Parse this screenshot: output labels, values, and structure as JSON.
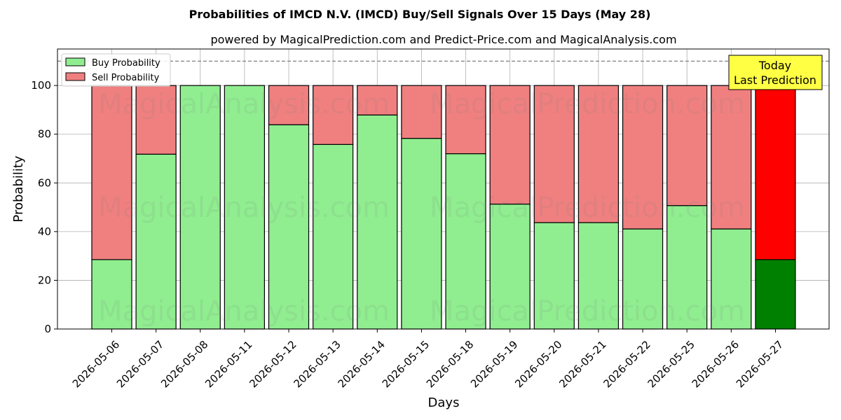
{
  "chart_data": {
    "type": "bar",
    "stacked": true,
    "title": "Probabilities of IMCD N.V. (IMCD) Buy/Sell Signals Over 15 Days (May 28)",
    "subtitle": "powered by MagicalPrediction.com and Predict-Price.com and MagicalAnalysis.com",
    "xlabel": "Days",
    "ylabel": "Probability",
    "ylim": [
      0,
      115
    ],
    "yticks": [
      0,
      20,
      40,
      60,
      80,
      100
    ],
    "reference_line": 110,
    "grid": true,
    "legend_position": "top-left",
    "categories": [
      "2026-05-06",
      "2026-05-07",
      "2026-05-08",
      "2026-05-11",
      "2026-05-12",
      "2026-05-13",
      "2026-05-14",
      "2026-05-15",
      "2026-05-18",
      "2026-05-19",
      "2026-05-20",
      "2026-05-21",
      "2026-05-22",
      "2026-05-25",
      "2026-05-26",
      "2026-05-27"
    ],
    "series": [
      {
        "name": "Buy Probability",
        "color": "#90ee90",
        "highlight_color": "#008000",
        "values": [
          28.5,
          71.8,
          100,
          100,
          83.9,
          75.8,
          87.9,
          78.3,
          72.0,
          51.3,
          43.7,
          43.7,
          41.1,
          50.7,
          41.1,
          28.5
        ]
      },
      {
        "name": "Sell Probability",
        "color": "#f08080",
        "highlight_color": "#ff0000",
        "values": [
          71.5,
          28.2,
          0,
          0,
          16.1,
          24.2,
          12.1,
          21.7,
          28.0,
          48.7,
          56.3,
          56.3,
          58.9,
          49.3,
          58.9,
          71.5
        ]
      }
    ],
    "highlight_index": 15,
    "annotation": {
      "lines": [
        "Today",
        "Last Prediction"
      ],
      "color": "#ffff44"
    },
    "watermarks": [
      "MagicalAnalysis.com",
      "MagicalPrediction.com"
    ]
  }
}
